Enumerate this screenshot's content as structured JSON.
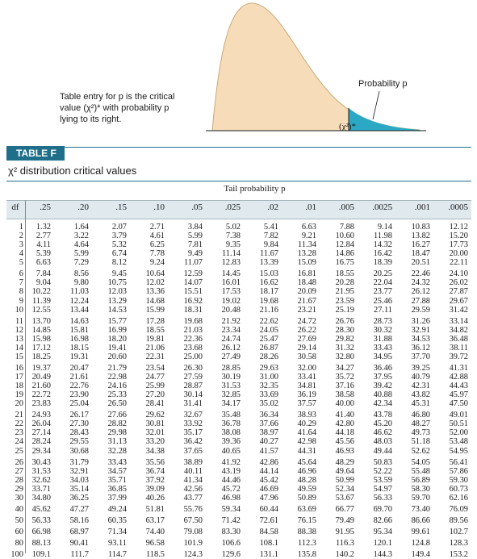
{
  "figure": {
    "caption": "Table entry for p is the critical value (χ²)* with probability p lying to its right.",
    "probability_label": "Probability p",
    "critical_label": "(χ²)*"
  },
  "table": {
    "badge": "TABLE F",
    "title": "χ² distribution critical values",
    "col_group_title": "Tail probability p",
    "df_label": "df",
    "p_values": [
      ".25",
      ".20",
      ".15",
      ".10",
      ".05",
      ".025",
      ".02",
      ".01",
      ".005",
      ".0025",
      ".001",
      ".0005"
    ],
    "rows": [
      {
        "df": "1",
        "values": [
          "1.32",
          "1.64",
          "2.07",
          "2.71",
          "3.84",
          "5.02",
          "5.41",
          "6.63",
          "7.88",
          "9.14",
          "10.83",
          "12.12"
        ]
      },
      {
        "df": "2",
        "values": [
          "2.77",
          "3.22",
          "3.79",
          "4.61",
          "5.99",
          "7.38",
          "7.82",
          "9.21",
          "10.60",
          "11.98",
          "13.82",
          "15.20"
        ]
      },
      {
        "df": "3",
        "values": [
          "4.11",
          "4.64",
          "5.32",
          "6.25",
          "7.81",
          "9.35",
          "9.84",
          "11.34",
          "12.84",
          "14.32",
          "16.27",
          "17.73"
        ]
      },
      {
        "df": "4",
        "values": [
          "5.39",
          "5.99",
          "6.74",
          "7.78",
          "9.49",
          "11.14",
          "11.67",
          "13.28",
          "14.86",
          "16.42",
          "18.47",
          "20.00"
        ]
      },
      {
        "df": "5",
        "values": [
          "6.63",
          "7.29",
          "8.12",
          "9.24",
          "11.07",
          "12.83",
          "13.39",
          "15.09",
          "16.75",
          "18.39",
          "20.51",
          "22.11"
        ]
      },
      {
        "df": "6",
        "values": [
          "7.84",
          "8.56",
          "9.45",
          "10.64",
          "12.59",
          "14.45",
          "15.03",
          "16.81",
          "18.55",
          "20.25",
          "22.46",
          "24.10"
        ]
      },
      {
        "df": "7",
        "values": [
          "9.04",
          "9.80",
          "10.75",
          "12.02",
          "14.07",
          "16.01",
          "16.62",
          "18.48",
          "20.28",
          "22.04",
          "24.32",
          "26.02"
        ]
      },
      {
        "df": "8",
        "values": [
          "10.22",
          "11.03",
          "12.03",
          "13.36",
          "15.51",
          "17.53",
          "18.17",
          "20.09",
          "21.95",
          "23.77",
          "26.12",
          "27.87"
        ]
      },
      {
        "df": "9",
        "values": [
          "11.39",
          "12.24",
          "13.29",
          "14.68",
          "16.92",
          "19.02",
          "19.68",
          "21.67",
          "23.59",
          "25.46",
          "27.88",
          "29.67"
        ]
      },
      {
        "df": "10",
        "values": [
          "12.55",
          "13.44",
          "14.53",
          "15.99",
          "18.31",
          "20.48",
          "21.16",
          "23.21",
          "25.19",
          "27.11",
          "29.59",
          "31.42"
        ]
      },
      {
        "df": "11",
        "values": [
          "13.70",
          "14.63",
          "15.77",
          "17.28",
          "19.68",
          "21.92",
          "22.62",
          "24.72",
          "26.76",
          "28.73",
          "31.26",
          "33.14"
        ]
      },
      {
        "df": "12",
        "values": [
          "14.85",
          "15.81",
          "16.99",
          "18.55",
          "21.03",
          "23.34",
          "24.05",
          "26.22",
          "28.30",
          "30.32",
          "32.91",
          "34.82"
        ]
      },
      {
        "df": "13",
        "values": [
          "15.98",
          "16.98",
          "18.20",
          "19.81",
          "22.36",
          "24.74",
          "25.47",
          "27.69",
          "29.82",
          "31.88",
          "34.53",
          "36.48"
        ]
      },
      {
        "df": "14",
        "values": [
          "17.12",
          "18.15",
          "19.41",
          "21.06",
          "23.68",
          "26.12",
          "26.87",
          "29.14",
          "31.32",
          "33.43",
          "36.12",
          "38.11"
        ]
      },
      {
        "df": "15",
        "values": [
          "18.25",
          "19.31",
          "20.60",
          "22.31",
          "25.00",
          "27.49",
          "28.26",
          "30.58",
          "32.80",
          "34.95",
          "37.70",
          "39.72"
        ]
      },
      {
        "df": "16",
        "values": [
          "19.37",
          "20.47",
          "21.79",
          "23.54",
          "26.30",
          "28.85",
          "29.63",
          "32.00",
          "34.27",
          "36.46",
          "39.25",
          "41.31"
        ]
      },
      {
        "df": "17",
        "values": [
          "20.49",
          "21.61",
          "22.98",
          "24.77",
          "27.59",
          "30.19",
          "31.00",
          "33.41",
          "35.72",
          "37.95",
          "40.79",
          "42.88"
        ]
      },
      {
        "df": "18",
        "values": [
          "21.60",
          "22.76",
          "24.16",
          "25.99",
          "28.87",
          "31.53",
          "32.35",
          "34.81",
          "37.16",
          "39.42",
          "42.31",
          "44.43"
        ]
      },
      {
        "df": "19",
        "values": [
          "22.72",
          "23.90",
          "25.33",
          "27.20",
          "30.14",
          "32.85",
          "33.69",
          "36.19",
          "38.58",
          "40.88",
          "43.82",
          "45.97"
        ]
      },
      {
        "df": "20",
        "values": [
          "23.83",
          "25.04",
          "26.50",
          "28.41",
          "31.41",
          "34.17",
          "35.02",
          "37.57",
          "40.00",
          "42.34",
          "45.31",
          "47.50"
        ]
      },
      {
        "df": "21",
        "values": [
          "24.93",
          "26.17",
          "27.66",
          "29.62",
          "32.67",
          "35.48",
          "36.34",
          "38.93",
          "41.40",
          "43.78",
          "46.80",
          "49.01"
        ]
      },
      {
        "df": "22",
        "values": [
          "26.04",
          "27.30",
          "28.82",
          "30.81",
          "33.92",
          "36.78",
          "37.66",
          "40.29",
          "42.80",
          "45.20",
          "48.27",
          "50.51"
        ]
      },
      {
        "df": "23",
        "values": [
          "27.14",
          "28.43",
          "29.98",
          "32.01",
          "35.17",
          "38.08",
          "38.97",
          "41.64",
          "44.18",
          "46.62",
          "49.73",
          "52.00"
        ]
      },
      {
        "df": "24",
        "values": [
          "28.24",
          "29.55",
          "31.13",
          "33.20",
          "36.42",
          "39.36",
          "40.27",
          "42.98",
          "45.56",
          "48.03",
          "51.18",
          "53.48"
        ]
      },
      {
        "df": "25",
        "values": [
          "29.34",
          "30.68",
          "32.28",
          "34.38",
          "37.65",
          "40.65",
          "41.57",
          "44.31",
          "46.93",
          "49.44",
          "52.62",
          "54.95"
        ]
      },
      {
        "df": "26",
        "values": [
          "30.43",
          "31.79",
          "33.43",
          "35.56",
          "38.89",
          "41.92",
          "42.86",
          "45.64",
          "48.29",
          "50.83",
          "54.05",
          "56.41"
        ]
      },
      {
        "df": "27",
        "values": [
          "31.53",
          "32.91",
          "34.57",
          "36.74",
          "40.11",
          "43.19",
          "44.14",
          "46.96",
          "49.64",
          "52.22",
          "55.48",
          "57.86"
        ]
      },
      {
        "df": "28",
        "values": [
          "32.62",
          "34.03",
          "35.71",
          "37.92",
          "41.34",
          "44.46",
          "45.42",
          "48.28",
          "50.99",
          "53.59",
          "56.89",
          "59.30"
        ]
      },
      {
        "df": "29",
        "values": [
          "33.71",
          "35.14",
          "36.85",
          "39.09",
          "42.56",
          "45.72",
          "46.69",
          "49.59",
          "52.34",
          "54.97",
          "58.30",
          "60.73"
        ]
      },
      {
        "df": "30",
        "values": [
          "34.80",
          "36.25",
          "37.99",
          "40.26",
          "43.77",
          "46.98",
          "47.96",
          "50.89",
          "53.67",
          "56.33",
          "59.70",
          "62.16"
        ]
      },
      {
        "df": "40",
        "values": [
          "45.62",
          "47.27",
          "49.24",
          "51.81",
          "55.76",
          "59.34",
          "60.44",
          "63.69",
          "66.77",
          "69.70",
          "73.40",
          "76.09"
        ]
      },
      {
        "df": "50",
        "values": [
          "56.33",
          "58.16",
          "60.35",
          "63.17",
          "67.50",
          "71.42",
          "72.61",
          "76.15",
          "79.49",
          "82.66",
          "86.66",
          "89.56"
        ]
      },
      {
        "df": "60",
        "values": [
          "66.98",
          "68.97",
          "71.34",
          "74.40",
          "79.08",
          "83.30",
          "84.58",
          "88.38",
          "91.95",
          "95.34",
          "99.61",
          "102.7"
        ]
      },
      {
        "df": "80",
        "values": [
          "88.13",
          "90.41",
          "93.11",
          "96.58",
          "101.9",
          "106.6",
          "108.1",
          "112.3",
          "116.3",
          "120.1",
          "124.8",
          "128.3"
        ]
      },
      {
        "df": "100",
        "values": [
          "109.1",
          "111.7",
          "114.7",
          "118.5",
          "124.3",
          "129.6",
          "131.1",
          "135.8",
          "140.2",
          "144.3",
          "149.4",
          "153.2"
        ]
      }
    ]
  },
  "colors": {
    "curve_fill": "#f6dcb8",
    "curve_stroke": "#c9a97a",
    "tail_fill": "#2ba9c4",
    "accent": "#1f6f8b",
    "header_band": "#dfe9ee"
  }
}
